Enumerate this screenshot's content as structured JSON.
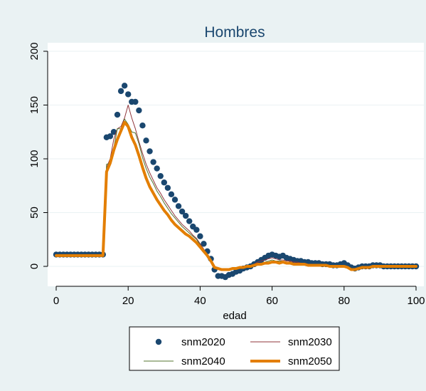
{
  "chart_data": {
    "type": "line",
    "title": "Hombres",
    "xlabel": "edad",
    "ylabel": "",
    "xlim": [
      0,
      100
    ],
    "ylim": [
      -10,
      200
    ],
    "xticks": [
      "0",
      "20",
      "40",
      "60",
      "80",
      "100"
    ],
    "yticks": [
      "0",
      "50",
      "100",
      "150",
      "200"
    ],
    "grid": "horizontal",
    "legend_position": "bottom",
    "legend": [
      "snm2020",
      "snm2030",
      "snm2040",
      "snm2050"
    ],
    "colors": {
      "snm2020": "#1a476f",
      "snm2030": "#90353b",
      "snm2040": "#55752f",
      "snm2050": "#e37e00"
    },
    "x": [
      0,
      1,
      2,
      3,
      4,
      5,
      6,
      7,
      8,
      9,
      10,
      11,
      12,
      13,
      14,
      15,
      16,
      17,
      18,
      19,
      20,
      21,
      22,
      23,
      24,
      25,
      26,
      27,
      28,
      29,
      30,
      31,
      32,
      33,
      34,
      35,
      36,
      37,
      38,
      39,
      40,
      41,
      42,
      43,
      44,
      45,
      46,
      47,
      48,
      49,
      50,
      51,
      52,
      53,
      54,
      55,
      56,
      57,
      58,
      59,
      60,
      61,
      62,
      63,
      64,
      65,
      66,
      67,
      68,
      69,
      70,
      71,
      72,
      73,
      74,
      75,
      76,
      77,
      78,
      79,
      80,
      81,
      82,
      83,
      84,
      85,
      86,
      87,
      88,
      89,
      90,
      91,
      92,
      93,
      94,
      95,
      96,
      97,
      98,
      99,
      100
    ],
    "series": [
      {
        "name": "snm2020",
        "style": "scatter",
        "values": [
          11,
          11,
          11,
          11,
          11,
          11,
          11,
          11,
          11,
          11,
          11,
          11,
          11,
          11,
          120,
          121,
          125,
          141,
          163,
          168,
          160,
          153,
          153,
          145,
          131,
          117,
          107,
          97,
          91,
          84,
          78,
          73,
          67,
          62,
          56,
          51,
          47,
          42,
          37,
          34,
          28,
          21,
          14,
          7,
          -3,
          -9,
          -9,
          -10,
          -8,
          -7,
          -5,
          -4,
          -2,
          -1,
          0,
          2,
          4,
          6,
          8,
          10,
          11,
          10,
          9,
          10,
          8,
          7,
          6,
          5,
          5,
          4,
          4,
          3,
          3,
          3,
          2,
          2,
          2,
          1,
          1,
          2,
          3,
          1,
          -1,
          -2,
          -1,
          0,
          0,
          0,
          1,
          1,
          1,
          0,
          0,
          0,
          0,
          0,
          0,
          0,
          0,
          0,
          0
        ]
      },
      {
        "name": "snm2030",
        "style": "line",
        "values": [
          10,
          10,
          10,
          10,
          10,
          10,
          10,
          10,
          10,
          10,
          10,
          10,
          10,
          10,
          92,
          100,
          118,
          128,
          130,
          138,
          150,
          138,
          128,
          116,
          105,
          95,
          87,
          80,
          73,
          68,
          62,
          57,
          52,
          47,
          43,
          39,
          36,
          33,
          29,
          26,
          21,
          16,
          11,
          6,
          0,
          -3,
          -4,
          -4,
          -3,
          -3,
          -2,
          -2,
          -1,
          0,
          1,
          2,
          4,
          5,
          6,
          7,
          8,
          7,
          6,
          6,
          5,
          5,
          4,
          4,
          3,
          3,
          2,
          2,
          2,
          2,
          1,
          1,
          1,
          1,
          1,
          1,
          1,
          0,
          -2,
          -3,
          -2,
          -1,
          -1,
          0,
          0,
          0,
          0,
          0,
          0,
          0,
          0,
          0,
          0,
          0,
          0,
          0,
          0
        ]
      },
      {
        "name": "snm2040",
        "style": "line",
        "values": [
          10,
          10,
          10,
          10,
          10,
          10,
          10,
          10,
          10,
          10,
          10,
          10,
          10,
          10,
          95,
          96,
          110,
          128,
          128,
          137,
          132,
          125,
          124,
          114,
          101,
          91,
          83,
          77,
          70,
          65,
          59,
          54,
          49,
          45,
          41,
          37,
          34,
          31,
          28,
          25,
          20,
          15,
          11,
          6,
          0,
          -2,
          -3,
          -3,
          -3,
          -2,
          -2,
          -1,
          -1,
          0,
          0,
          1,
          2,
          3,
          4,
          5,
          6,
          5,
          5,
          5,
          4,
          4,
          3,
          3,
          3,
          2,
          2,
          2,
          1,
          1,
          1,
          1,
          1,
          1,
          1,
          1,
          1,
          0,
          -2,
          -3,
          -2,
          -1,
          -1,
          0,
          0,
          0,
          0,
          0,
          0,
          0,
          0,
          0,
          0,
          0,
          0,
          0,
          0
        ]
      },
      {
        "name": "snm2050",
        "style": "thickline",
        "values": [
          10,
          10,
          10,
          10,
          10,
          10,
          10,
          10,
          10,
          10,
          10,
          10,
          10,
          10,
          88,
          96,
          108,
          118,
          126,
          134,
          130,
          120,
          113,
          103,
          92,
          82,
          74,
          68,
          62,
          57,
          52,
          48,
          43,
          39,
          36,
          33,
          30,
          28,
          25,
          22,
          18,
          14,
          10,
          5,
          -1,
          -2,
          -3,
          -3,
          -3,
          -2,
          -2,
          -1,
          -1,
          0,
          0,
          1,
          2,
          2,
          3,
          3,
          4,
          4,
          3,
          4,
          3,
          3,
          2,
          2,
          2,
          2,
          1,
          1,
          1,
          1,
          1,
          1,
          0,
          0,
          0,
          0,
          0,
          -1,
          -3,
          -3,
          -2,
          -1,
          -1,
          -1,
          0,
          0,
          0,
          0,
          0,
          0,
          0,
          0,
          0,
          0,
          0,
          0,
          0
        ]
      }
    ]
  }
}
